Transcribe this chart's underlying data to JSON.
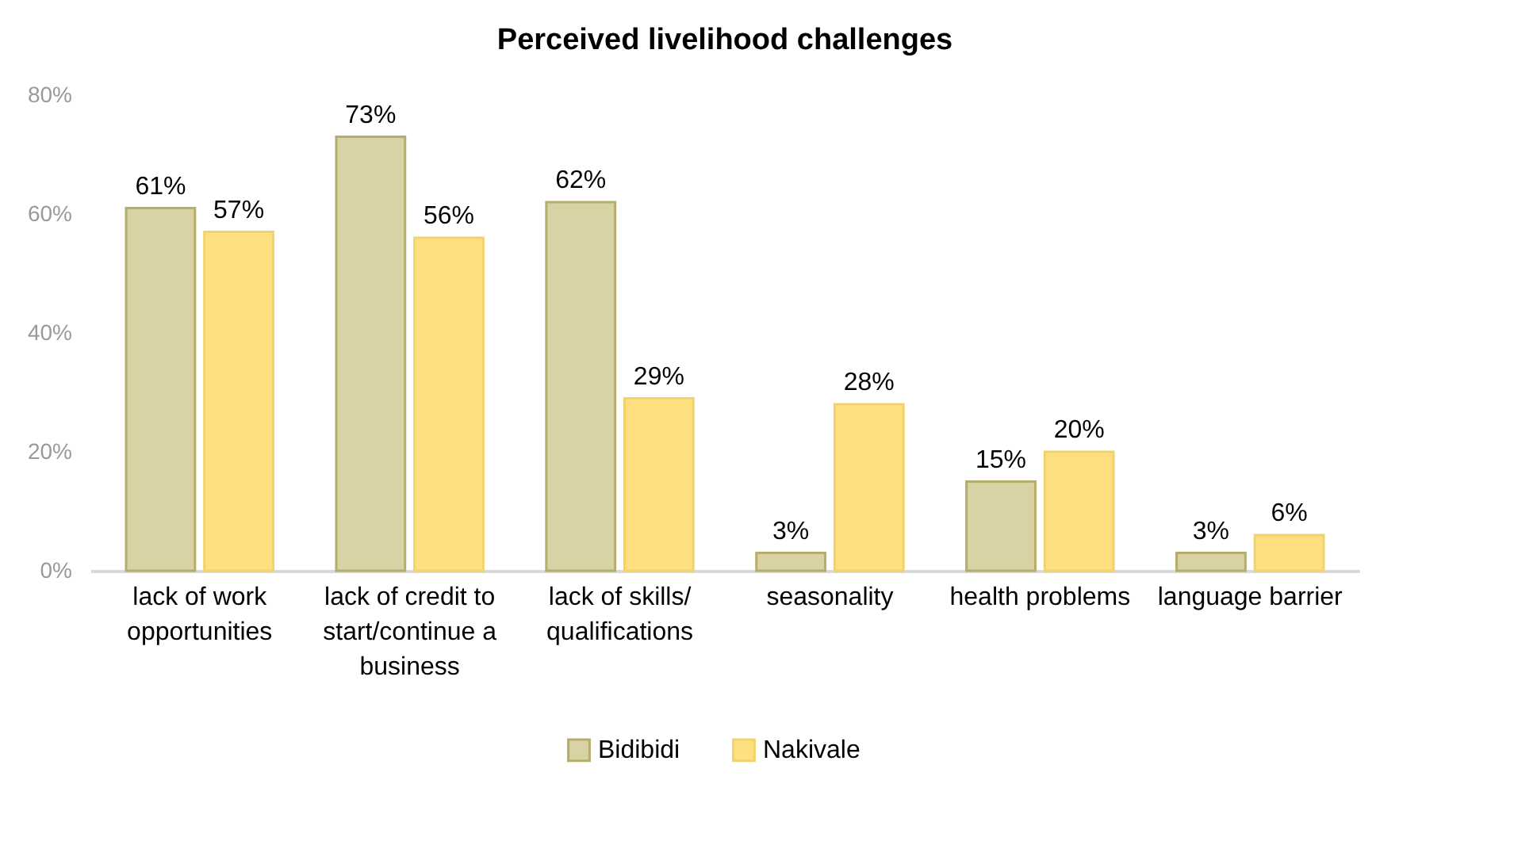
{
  "chart_data": {
    "type": "bar",
    "title": "Perceived livelihood  challenges",
    "categories": [
      "lack of work opportunities",
      "lack of credit to start/continue a business",
      "lack of skills/ qualifications",
      "seasonality",
      "health problems",
      "language barrier"
    ],
    "series": [
      {
        "name": "Bidibidi",
        "color": "#d9d2a4",
        "values": [
          61,
          73,
          62,
          3,
          15,
          3
        ],
        "value_labels": [
          "61%",
          "73%",
          "62%",
          "3%",
          "15%",
          "3%"
        ]
      },
      {
        "name": "Nakivale",
        "color": "#ffdf80",
        "values": [
          57,
          56,
          29,
          28,
          20,
          6
        ],
        "value_labels": [
          "57%",
          "56%",
          "29%",
          "28%",
          "20%",
          "6%"
        ]
      }
    ],
    "ylim": [
      0,
      80
    ],
    "yticks": [
      {
        "value": 0,
        "label": "0%"
      },
      {
        "value": 20,
        "label": "20%"
      },
      {
        "value": 40,
        "label": "40%"
      },
      {
        "value": 60,
        "label": "60%"
      },
      {
        "value": 80,
        "label": "80%"
      }
    ],
    "grid": false,
    "legend": "bottom"
  }
}
